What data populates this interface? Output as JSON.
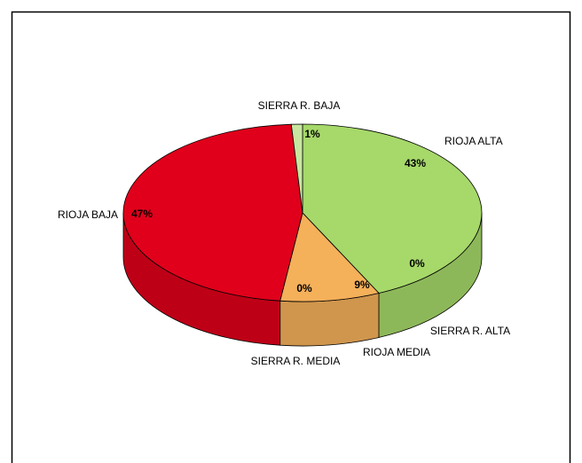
{
  "chart_data": {
    "type": "pie",
    "categories": [
      "RIOJA ALTA",
      "SIERRA R. ALTA",
      "RIOJA MEDIA",
      "SIERRA R. MEDIA",
      "RIOJA BAJA",
      "SIERRA R. BAJA"
    ],
    "values": [
      43,
      0,
      9,
      0,
      47,
      1
    ],
    "value_labels": [
      "43%",
      "0%",
      "9%",
      "0%",
      "47%",
      "1%"
    ],
    "colors": [
      "#a6d86a",
      "#9fd46a",
      "#f5b05a",
      "#d9a060",
      "#e0001b",
      "#c8e6a0"
    ]
  }
}
